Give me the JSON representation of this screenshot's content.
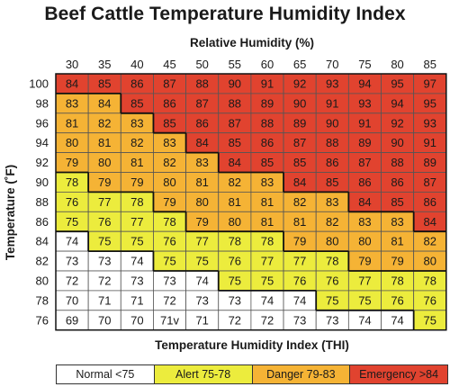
{
  "title": "Beef Cattle Temperature Humidity Index",
  "colors": {
    "normal": "#ffffff",
    "alert": "#ecec3d",
    "danger": "#f5b335",
    "emergency": "#e1432f",
    "grid": "#555555",
    "boundary": "#111111"
  },
  "legend": [
    {
      "label": "Normal <75",
      "category": "normal"
    },
    {
      "label": "Alert 75-78",
      "category": "alert"
    },
    {
      "label": "Danger 79-83",
      "category": "danger"
    },
    {
      "label": "Emergency >84",
      "category": "emergency"
    }
  ],
  "chart_data": {
    "type": "heatmap",
    "title": "Beef Cattle Temperature Humidity Index",
    "xlabel": "Relative Humidity (%)",
    "ylabel": "Temperature (˚F)",
    "caption": "Temperature Humidity Index (THI)",
    "x": [
      "30",
      "35",
      "40",
      "45",
      "50",
      "55",
      "60",
      "65",
      "70",
      "75",
      "80",
      "85"
    ],
    "y": [
      "100",
      "98",
      "96",
      "94",
      "92",
      "90",
      "88",
      "86",
      "84",
      "82",
      "80",
      "78",
      "76"
    ],
    "values": [
      [
        "84",
        "85",
        "86",
        "87",
        "88",
        "90",
        "91",
        "92",
        "93",
        "94",
        "95",
        "97"
      ],
      [
        "83",
        "84",
        "85",
        "86",
        "87",
        "88",
        "89",
        "90",
        "91",
        "93",
        "94",
        "95"
      ],
      [
        "81",
        "82",
        "83",
        "85",
        "86",
        "87",
        "88",
        "89",
        "90",
        "91",
        "92",
        "93"
      ],
      [
        "80",
        "81",
        "82",
        "83",
        "84",
        "85",
        "86",
        "87",
        "88",
        "89",
        "90",
        "91"
      ],
      [
        "79",
        "80",
        "81",
        "82",
        "83",
        "84",
        "85",
        "85",
        "86",
        "87",
        "88",
        "89"
      ],
      [
        "78",
        "79",
        "79",
        "80",
        "81",
        "82",
        "83",
        "84",
        "85",
        "86",
        "86",
        "87"
      ],
      [
        "76",
        "77",
        "78",
        "79",
        "80",
        "81",
        "81",
        "82",
        "83",
        "84",
        "85",
        "86"
      ],
      [
        "75",
        "76",
        "77",
        "78",
        "79",
        "80",
        "81",
        "81",
        "82",
        "83",
        "83",
        "84"
      ],
      [
        "74",
        "75",
        "75",
        "76",
        "77",
        "78",
        "78",
        "79",
        "80",
        "80",
        "81",
        "82"
      ],
      [
        "73",
        "73",
        "74",
        "75",
        "75",
        "76",
        "77",
        "77",
        "78",
        "79",
        "79",
        "80"
      ],
      [
        "72",
        "72",
        "73",
        "73",
        "74",
        "75",
        "75",
        "76",
        "76",
        "77",
        "78",
        "78"
      ],
      [
        "70",
        "71",
        "71",
        "72",
        "73",
        "73",
        "74",
        "74",
        "75",
        "75",
        "76",
        "76"
      ],
      [
        "69",
        "70",
        "70",
        "71v",
        "71",
        "72",
        "72",
        "73",
        "73",
        "74",
        "74",
        "75"
      ]
    ],
    "categories": [
      [
        "emergency",
        "emergency",
        "emergency",
        "emergency",
        "emergency",
        "emergency",
        "emergency",
        "emergency",
        "emergency",
        "emergency",
        "emergency",
        "emergency"
      ],
      [
        "danger",
        "danger",
        "emergency",
        "emergency",
        "emergency",
        "emergency",
        "emergency",
        "emergency",
        "emergency",
        "emergency",
        "emergency",
        "emergency"
      ],
      [
        "danger",
        "danger",
        "danger",
        "emergency",
        "emergency",
        "emergency",
        "emergency",
        "emergency",
        "emergency",
        "emergency",
        "emergency",
        "emergency"
      ],
      [
        "danger",
        "danger",
        "danger",
        "danger",
        "emergency",
        "emergency",
        "emergency",
        "emergency",
        "emergency",
        "emergency",
        "emergency",
        "emergency"
      ],
      [
        "danger",
        "danger",
        "danger",
        "danger",
        "danger",
        "emergency",
        "emergency",
        "emergency",
        "emergency",
        "emergency",
        "emergency",
        "emergency"
      ],
      [
        "alert",
        "danger",
        "danger",
        "danger",
        "danger",
        "danger",
        "danger",
        "emergency",
        "emergency",
        "emergency",
        "emergency",
        "emergency"
      ],
      [
        "alert",
        "alert",
        "alert",
        "danger",
        "danger",
        "danger",
        "danger",
        "danger",
        "danger",
        "emergency",
        "emergency",
        "emergency"
      ],
      [
        "alert",
        "alert",
        "alert",
        "alert",
        "danger",
        "danger",
        "danger",
        "danger",
        "danger",
        "danger",
        "danger",
        "emergency"
      ],
      [
        "normal",
        "alert",
        "alert",
        "alert",
        "alert",
        "alert",
        "alert",
        "danger",
        "danger",
        "danger",
        "danger",
        "danger"
      ],
      [
        "normal",
        "normal",
        "normal",
        "alert",
        "alert",
        "alert",
        "alert",
        "alert",
        "alert",
        "danger",
        "danger",
        "danger"
      ],
      [
        "normal",
        "normal",
        "normal",
        "normal",
        "normal",
        "alert",
        "alert",
        "alert",
        "alert",
        "alert",
        "alert",
        "alert"
      ],
      [
        "normal",
        "normal",
        "normal",
        "normal",
        "normal",
        "normal",
        "normal",
        "normal",
        "alert",
        "alert",
        "alert",
        "alert"
      ],
      [
        "normal",
        "normal",
        "normal",
        "normal",
        "normal",
        "normal",
        "normal",
        "normal",
        "normal",
        "normal",
        "normal",
        "alert"
      ]
    ]
  }
}
